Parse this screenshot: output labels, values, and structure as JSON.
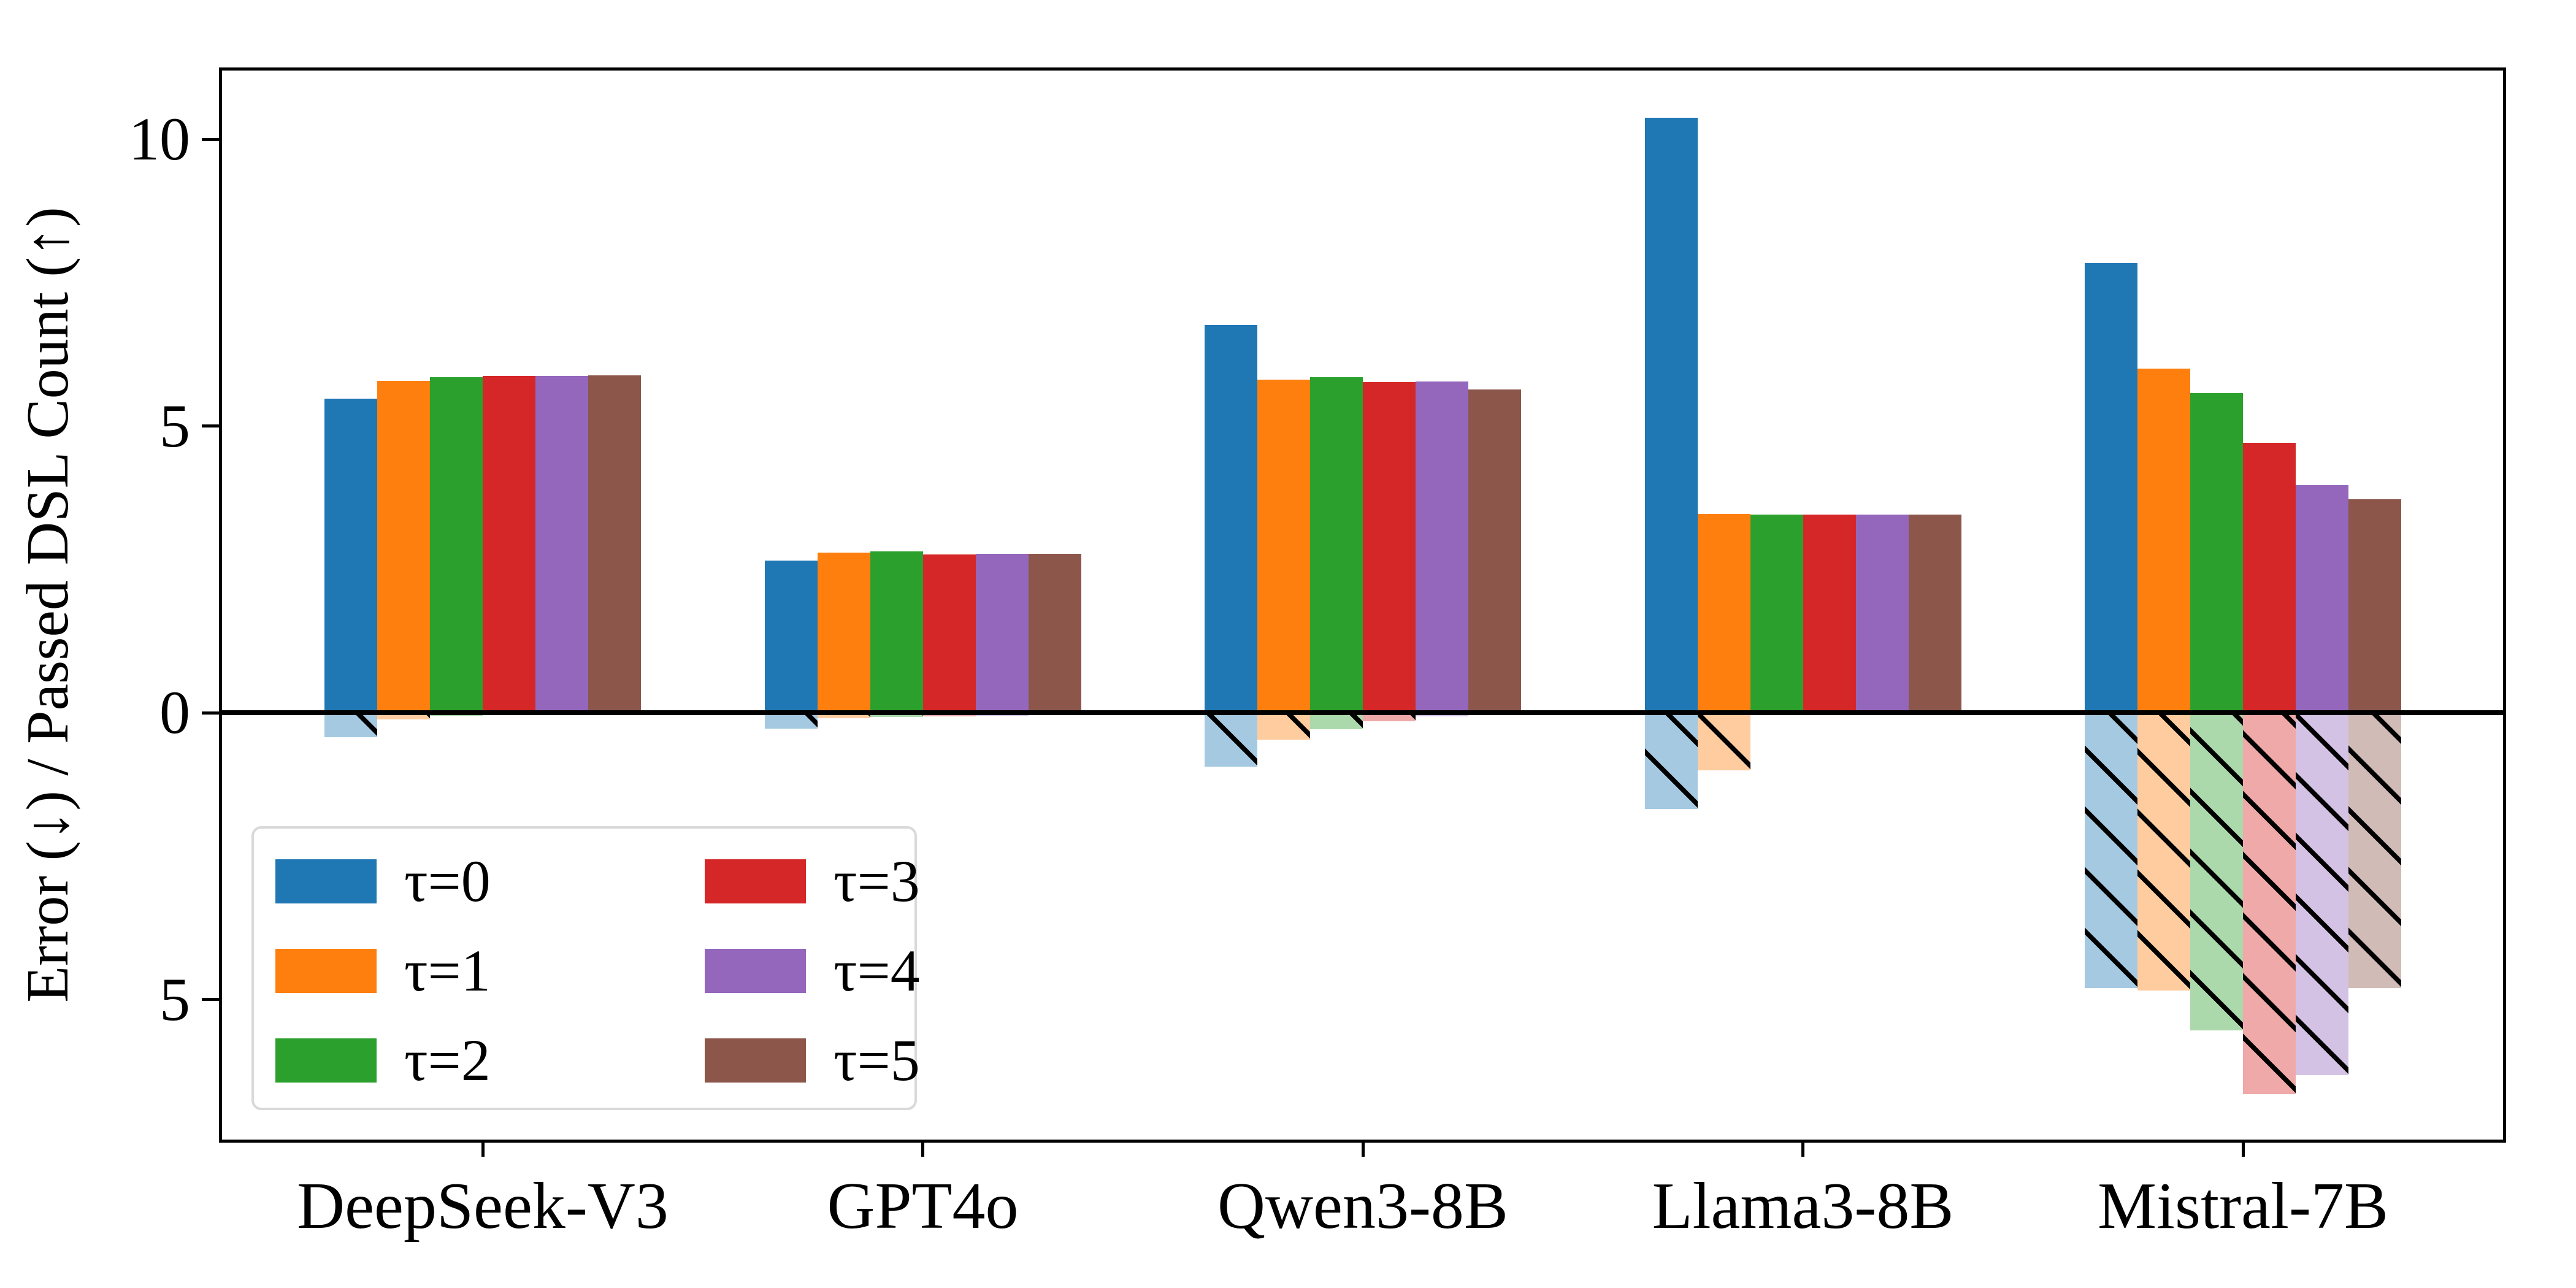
{
  "chart_data": {
    "type": "bar",
    "title": "",
    "ylabel": "Error (↓) / Passed DSL Count (↑)",
    "xlabel": "",
    "grid": false,
    "legend_position": "lower left",
    "ylim": [
      -7.47,
      11.25
    ],
    "categories": [
      "DeepSeek-V3",
      "GPT4o",
      "Qwen3-8B",
      "Llama3-8B",
      "Mistral-7B"
    ],
    "yticks": [
      {
        "value": 10,
        "label": "10"
      },
      {
        "value": 5,
        "label": "5"
      },
      {
        "value": 0,
        "label": "0"
      },
      {
        "value": -5,
        "label": "5"
      }
    ],
    "negative_bars_style": "same series color at 40% opacity with black \\\\ hatching",
    "series": [
      {
        "name": "τ=0",
        "color": "#1f77b4",
        "passed_dsl_count": [
          5.48,
          2.65,
          6.76,
          10.37,
          7.84
        ],
        "error": [
          -0.43,
          -0.28,
          -0.94,
          -1.68,
          -4.8
        ]
      },
      {
        "name": "τ=1",
        "color": "#ff7f0e",
        "passed_dsl_count": [
          5.79,
          2.79,
          5.81,
          3.46,
          6.0
        ],
        "error": [
          -0.12,
          -0.1,
          -0.47,
          -1.01,
          -4.85
        ]
      },
      {
        "name": "τ=2",
        "color": "#2ca02c",
        "passed_dsl_count": [
          5.85,
          2.81,
          5.85,
          3.45,
          5.57
        ],
        "error": [
          -0.05,
          -0.08,
          -0.29,
          -0.02,
          -5.54
        ]
      },
      {
        "name": "τ=3",
        "color": "#d62728",
        "passed_dsl_count": [
          5.87,
          2.76,
          5.77,
          3.45,
          4.71
        ],
        "error": [
          -0.03,
          -0.06,
          -0.15,
          -0.02,
          -6.65
        ]
      },
      {
        "name": "τ=4",
        "color": "#9467bd",
        "passed_dsl_count": [
          5.87,
          2.77,
          5.78,
          3.45,
          3.97
        ],
        "error": [
          -0.02,
          -0.05,
          -0.06,
          -0.01,
          -6.32
        ]
      },
      {
        "name": "τ=5",
        "color": "#8c564b",
        "passed_dsl_count": [
          5.88,
          2.77,
          5.64,
          3.45,
          3.72
        ],
        "error": [
          -0.02,
          -0.04,
          -0.03,
          -0.01,
          -4.8
        ]
      }
    ]
  }
}
